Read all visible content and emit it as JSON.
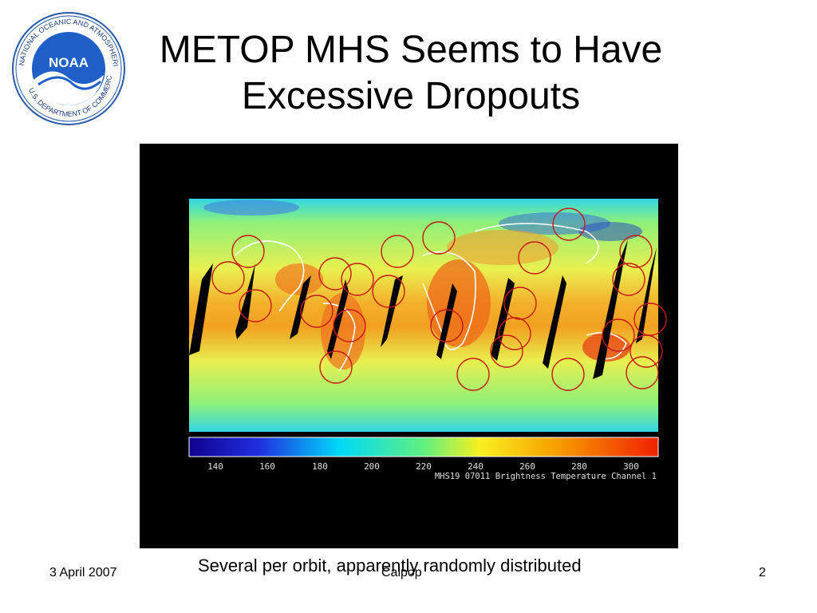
{
  "slide": {
    "title": "METOP MHS Seems to Have Excessive Dropouts",
    "caption": "Several per orbit, apparently randomly distributed",
    "footer": {
      "date": "3 April 2007",
      "center": "Calpop",
      "page": "2"
    }
  },
  "logo": {
    "name": "NOAA",
    "ring_text": "NATIONAL OCEANIC AND ATMOSPHERIC ADMINISTRATION · U.S. DEPARTMENT OF COMMERCE"
  },
  "figure": {
    "colorbar_ticks": [
      "140",
      "160",
      "180",
      "200",
      "220",
      "240",
      "260",
      "280",
      "300"
    ],
    "colorbar_label": "MHS19  07011  Brightness Temperature  Channel  1",
    "colors": {
      "cold": "#1a1a9a",
      "mid": "#4cc2c8",
      "warm": "#f2a020",
      "hot": "#e23a10"
    }
  }
}
